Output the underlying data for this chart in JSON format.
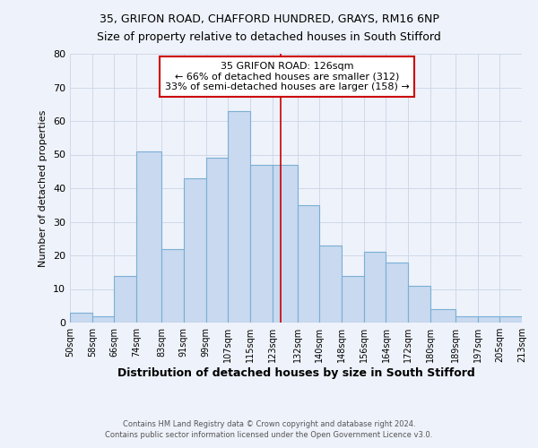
{
  "title_line1": "35, GRIFON ROAD, CHAFFORD HUNDRED, GRAYS, RM16 6NP",
  "title_line2": "Size of property relative to detached houses in South Stifford",
  "xlabel": "Distribution of detached houses by size in South Stifford",
  "ylabel": "Number of detached properties",
  "footnote1": "Contains HM Land Registry data © Crown copyright and database right 2024.",
  "footnote2": "Contains public sector information licensed under the Open Government Licence v3.0.",
  "annotation_line1": "35 GRIFON ROAD: 126sqm",
  "annotation_line2": "← 66% of detached houses are smaller (312)",
  "annotation_line3": "33% of semi-detached houses are larger (158) →",
  "bar_left_edges": [
    50,
    58,
    66,
    74,
    83,
    91,
    99,
    107,
    115,
    123,
    132,
    140,
    148,
    156,
    164,
    172,
    180,
    189,
    197,
    205
  ],
  "bar_widths": [
    8,
    8,
    8,
    9,
    8,
    8,
    8,
    8,
    8,
    9,
    8,
    8,
    8,
    8,
    8,
    8,
    9,
    8,
    8,
    8
  ],
  "bar_heights": [
    3,
    2,
    14,
    51,
    22,
    43,
    49,
    63,
    47,
    47,
    35,
    23,
    14,
    21,
    18,
    11,
    4,
    2,
    2,
    2
  ],
  "bar_facecolor": "#c8d9f0",
  "bar_edgecolor": "#7bafd4",
  "vline_x": 126,
  "vline_color": "#cc0000",
  "annotation_box_edgecolor": "#cc0000",
  "annotation_box_facecolor": "#ffffff",
  "grid_color": "#d0d8e8",
  "background_color": "#eef2fa",
  "ylim": [
    0,
    80
  ],
  "yticks": [
    0,
    10,
    20,
    30,
    40,
    50,
    60,
    70,
    80
  ],
  "xlim": [
    50,
    213
  ],
  "tick_labels": [
    "50sqm",
    "58sqm",
    "66sqm",
    "74sqm",
    "83sqm",
    "91sqm",
    "99sqm",
    "107sqm",
    "115sqm",
    "123sqm",
    "132sqm",
    "140sqm",
    "148sqm",
    "156sqm",
    "164sqm",
    "172sqm",
    "180sqm",
    "189sqm",
    "197sqm",
    "205sqm",
    "213sqm"
  ],
  "tick_positions": [
    50,
    58,
    66,
    74,
    83,
    91,
    99,
    107,
    115,
    123,
    132,
    140,
    148,
    156,
    164,
    172,
    180,
    189,
    197,
    205,
    213
  ],
  "title_fontsize": 9,
  "xlabel_fontsize": 9,
  "ylabel_fontsize": 8,
  "annotation_fontsize": 8,
  "footnote_fontsize": 6,
  "ytick_fontsize": 8,
  "xtick_fontsize": 7
}
